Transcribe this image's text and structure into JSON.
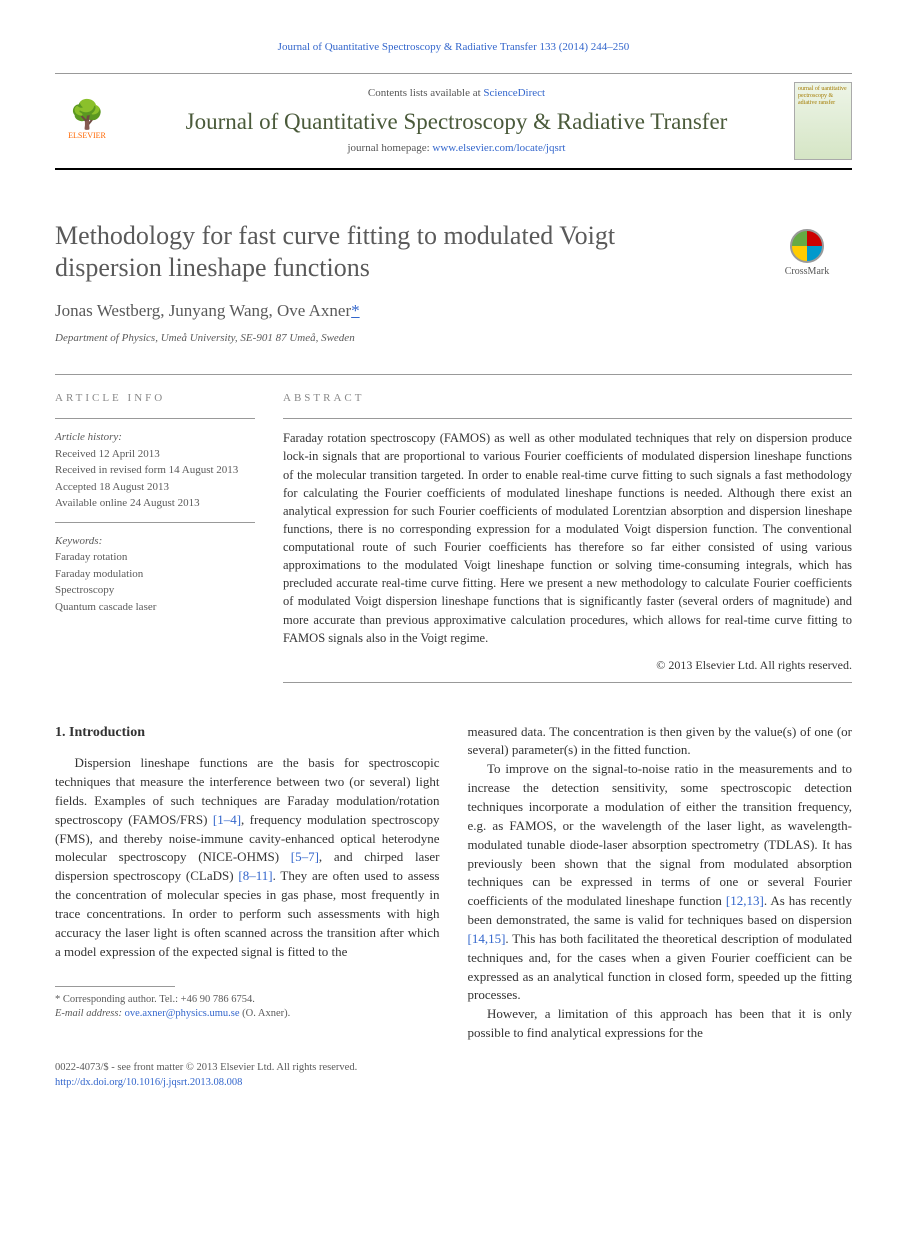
{
  "header": {
    "citation": "Journal of Quantitative Spectroscopy & Radiative Transfer 133 (2014) 244–250",
    "contents_prefix": "Contents lists available at ",
    "contents_link": "ScienceDirect",
    "journal_title": "Journal of Quantitative Spectroscopy & Radiative Transfer",
    "homepage_prefix": "journal homepage: ",
    "homepage_url": "www.elsevier.com/locate/jqsrt",
    "publisher": "ELSEVIER",
    "cover_text": "ournal of uantitative pectroscopy & adiative ransfer"
  },
  "crossmark": {
    "label": "CrossMark"
  },
  "article": {
    "title": "Methodology for fast curve fitting to modulated Voigt dispersion lineshape functions",
    "authors": "Jonas Westberg, Junyang Wang, Ove Axner",
    "corr_mark": "*",
    "affiliation": "Department of Physics, Umeå University, SE-901 87 Umeå, Sweden"
  },
  "info": {
    "label": "article info",
    "history_label": "Article history:",
    "received": "Received 12 April 2013",
    "revised": "Received in revised form 14 August 2013",
    "accepted": "Accepted 18 August 2013",
    "online": "Available online 24 August 2013",
    "kw_label": "Keywords:",
    "keywords": [
      "Faraday rotation",
      "Faraday modulation",
      "Spectroscopy",
      "Quantum cascade laser"
    ]
  },
  "abstract": {
    "label": "abstract",
    "text": "Faraday rotation spectroscopy (FAMOS) as well as other modulated techniques that rely on dispersion produce lock-in signals that are proportional to various Fourier coefficients of modulated dispersion lineshape functions of the molecular transition targeted. In order to enable real-time curve fitting to such signals a fast methodology for calculating the Fourier coefficients of modulated lineshape functions is needed. Although there exist an analytical expression for such Fourier coefficients of modulated Lorentzian absorption and dispersion lineshape functions, there is no corresponding expression for a modulated Voigt dispersion function. The conventional computational route of such Fourier coefficients has therefore so far either consisted of using various approximations to the modulated Voigt lineshape function or solving time-consuming integrals, which has precluded accurate real-time curve fitting. Here we present a new methodology to calculate Fourier coefficients of modulated Voigt dispersion lineshape functions that is significantly faster (several orders of magnitude) and more accurate than previous approximative calculation procedures, which allows for real-time curve fitting to FAMOS signals also in the Voigt regime.",
    "copyright": "© 2013 Elsevier Ltd. All rights reserved."
  },
  "body": {
    "heading": "1. Introduction",
    "col1_p1a": "Dispersion lineshape functions are the basis for spectroscopic techniques that measure the interference between two (or several) light fields. Examples of such techniques are Faraday modulation/rotation spectroscopy (FAMOS/FRS) ",
    "ref1": "[1–4]",
    "col1_p1b": ", frequency modulation spectroscopy (FMS), and thereby noise-immune cavity-enhanced optical heterodyne molecular spectroscopy (NICE-OHMS) ",
    "ref2": "[5–7]",
    "col1_p1c": ", and chirped laser dispersion spectroscopy (CLaDS) ",
    "ref3": "[8–11]",
    "col1_p1d": ". They are often used to assess the concentration of molecular species in gas phase, most frequently in trace concentrations. In order to perform such assessments with high accuracy the laser light is often scanned across the transition after which a model expression of the expected signal is fitted to the",
    "col2_p1": "measured data. The concentration is then given by the value(s) of one (or several) parameter(s) in the fitted function.",
    "col2_p2a": "To improve on the signal-to-noise ratio in the measurements and to increase the detection sensitivity, some spectroscopic detection techniques incorporate a modulation of either the transition frequency, e.g. as FAMOS, or the wavelength of the laser light, as wavelength-modulated tunable diode-laser absorption spectrometry (TDLAS). It has previously been shown that the signal from modulated absorption techniques can be expressed in terms of one or several Fourier coefficients of the modulated lineshape function ",
    "ref4": "[12,13]",
    "col2_p2b": ". As has recently been demonstrated, the same is valid for techniques based on dispersion ",
    "ref5": "[14,15]",
    "col2_p2c": ". This has both facilitated the theoretical description of modulated techniques and, for the cases when a given Fourier coefficient can be expressed as an analytical function in closed form, speeded up the fitting processes.",
    "col2_p3": "However, a limitation of this approach has been that it is only possible to find analytical expressions for the"
  },
  "footnote": {
    "corr": "* Corresponding author. Tel.: +46 90 786 6754.",
    "email_label": "E-mail address: ",
    "email": "ove.axner@physics.umu.se",
    "email_suffix": " (O. Axner)."
  },
  "footer": {
    "issn": "0022-4073/$ - see front matter © 2013 Elsevier Ltd. All rights reserved.",
    "doi": "http://dx.doi.org/10.1016/j.jqsrt.2013.08.008"
  },
  "colors": {
    "link": "#3366cc",
    "journal_title": "#4a5a3a",
    "elsevier": "#ff6600",
    "text": "#333333",
    "muted": "#5a5a5a"
  }
}
